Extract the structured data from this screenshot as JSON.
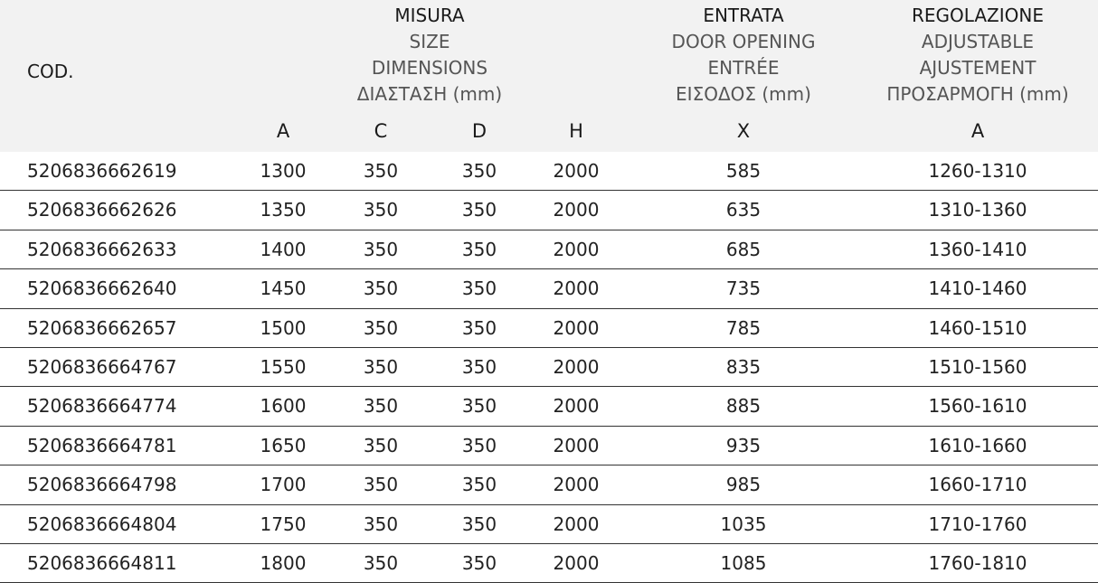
{
  "header": {
    "cod": "COD.",
    "misura": {
      "title": "MISURA",
      "lines": [
        "SIZE",
        "DIMENSIONS",
        "ΔΙΑΣΤΑΣΗ (mm)"
      ]
    },
    "entrata": {
      "title": "ENTRATA",
      "lines": [
        "DOOR OPENING",
        "ENTRÉE",
        "ΕΙΣΟΔΟΣ (mm)"
      ]
    },
    "regolazione": {
      "title": "REGOLAZIONE",
      "lines": [
        "ADJUSTABLE",
        "AJUSTEMENT",
        "ΠΡΟΣΑΡΜΟΓΗ (mm)"
      ]
    },
    "sub": [
      "A",
      "C",
      "D",
      "H",
      "X",
      "A"
    ]
  },
  "rows": [
    [
      "5206836662619",
      "1300",
      "350",
      "350",
      "2000",
      "585",
      "1260-1310"
    ],
    [
      "5206836662626",
      "1350",
      "350",
      "350",
      "2000",
      "635",
      "1310-1360"
    ],
    [
      "5206836662633",
      "1400",
      "350",
      "350",
      "2000",
      "685",
      "1360-1410"
    ],
    [
      "5206836662640",
      "1450",
      "350",
      "350",
      "2000",
      "735",
      "1410-1460"
    ],
    [
      "5206836662657",
      "1500",
      "350",
      "350",
      "2000",
      "785",
      "1460-1510"
    ],
    [
      "5206836664767",
      "1550",
      "350",
      "350",
      "2000",
      "835",
      "1510-1560"
    ],
    [
      "5206836664774",
      "1600",
      "350",
      "350",
      "2000",
      "885",
      "1560-1610"
    ],
    [
      "5206836664781",
      "1650",
      "350",
      "350",
      "2000",
      "935",
      "1610-1660"
    ],
    [
      "5206836664798",
      "1700",
      "350",
      "350",
      "2000",
      "985",
      "1660-1710"
    ],
    [
      "5206836664804",
      "1750",
      "350",
      "350",
      "2000",
      "1035",
      "1710-1760"
    ],
    [
      "5206836664811",
      "1800",
      "350",
      "350",
      "2000",
      "1085",
      "1760-1810"
    ]
  ]
}
